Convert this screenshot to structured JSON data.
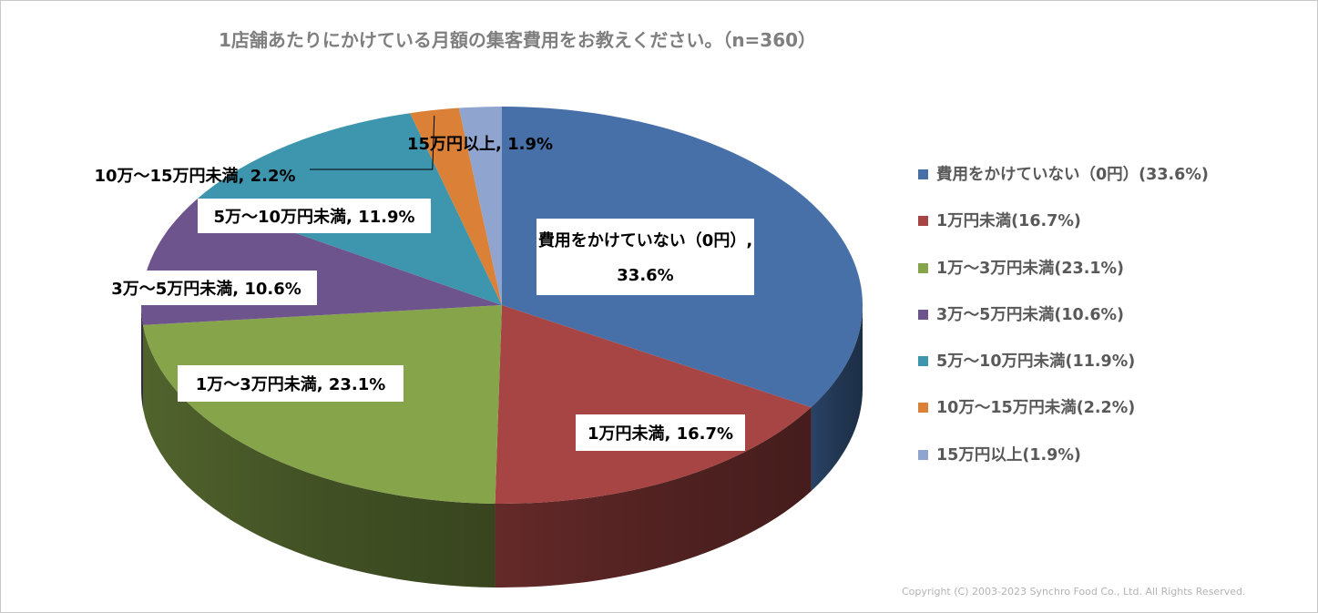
{
  "chart_data": {
    "type": "pie",
    "title": "1店舗あたりにかけている月額の集客費用をお教えください。（n=360）",
    "categories": [
      "費用をかけていない（0円）",
      "1万円未満",
      "1万～3万円未満",
      "3万～5万円未満",
      "5万～10万円未満",
      "10万～15万円未満",
      "15万円以上"
    ],
    "values": [
      33.6,
      16.7,
      23.1,
      10.6,
      11.9,
      2.2,
      1.9
    ],
    "unit": "%",
    "colors": [
      "#4670A7",
      "#A64543",
      "#86A44A",
      "#6E548D",
      "#3D96AE",
      "#DA8137",
      "#8FA4CE"
    ],
    "data_labels": [
      {
        "line1": "費用をかけていない（0円）,",
        "line2": "33.6%"
      },
      {
        "text": "1万円未満, 16.7%"
      },
      {
        "text": "1万～3万円未満, 23.1%"
      },
      {
        "text": "3万～5万円未満, 10.6%"
      },
      {
        "text": "5万～10万円未満, 11.9%"
      },
      {
        "text": "10万～15万円未満, 2.2%"
      },
      {
        "text": "15万円以上, 1.9%"
      }
    ],
    "legend": {
      "position": "right",
      "items": [
        "費用をかけていない（0円）(33.6%)",
        "1万円未満(16.7%)",
        "1万～3万円未満(23.1%)",
        "3万～5万円未満(10.6%)",
        "5万～10万円未満(11.9%)",
        "10万～15万円未満(2.2%)",
        "15万円以上(1.9%)"
      ]
    }
  },
  "footer": {
    "copyright": "Copyright (C) 2003-2023   Synchro Food Co., Ltd. All Rights Reserved."
  }
}
